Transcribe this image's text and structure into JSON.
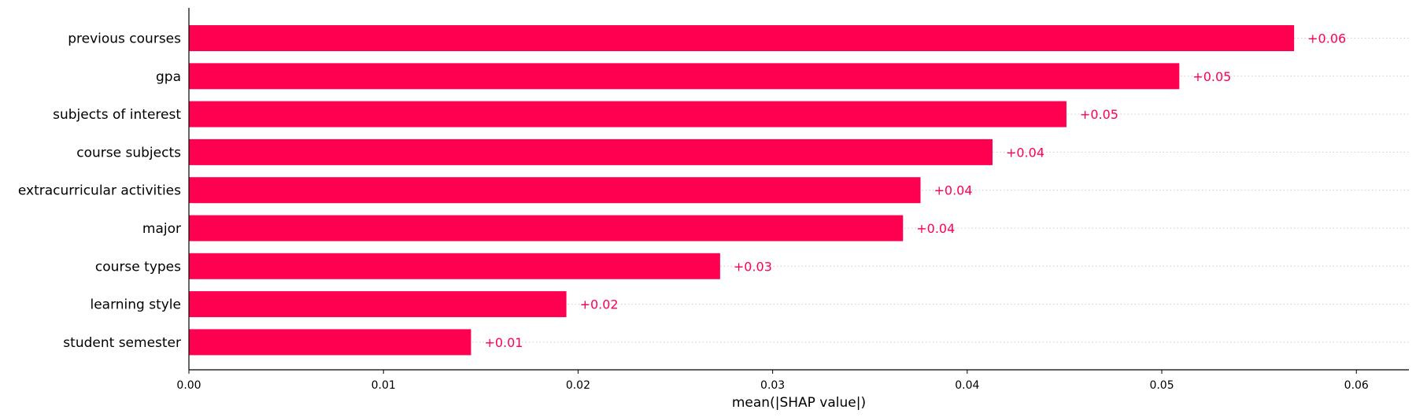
{
  "chart_data": {
    "type": "bar",
    "orientation": "horizontal",
    "categories": [
      "previous courses",
      "gpa",
      "subjects of interest",
      "course subjects",
      "extracurricular activities",
      "major",
      "course types",
      "learning style",
      "student semester"
    ],
    "values": [
      0.0568,
      0.0509,
      0.0451,
      0.0413,
      0.0376,
      0.0367,
      0.0273,
      0.0194,
      0.0145
    ],
    "value_labels": [
      "+0.06",
      "+0.05",
      "+0.05",
      "+0.04",
      "+0.04",
      "+0.04",
      "+0.03",
      "+0.02",
      "+0.01"
    ],
    "xlabel": "mean(|SHAP value|)",
    "xlim": [
      0,
      0.0627
    ],
    "xticks": [
      0.0,
      0.01,
      0.02,
      0.03,
      0.04,
      0.05,
      0.06
    ],
    "xtick_labels": [
      "0.00",
      "0.01",
      "0.02",
      "0.03",
      "0.04",
      "0.05",
      "0.06"
    ],
    "bar_color": "#ff0051",
    "label_color": "#ff0051",
    "grid": "dotted row guides"
  }
}
